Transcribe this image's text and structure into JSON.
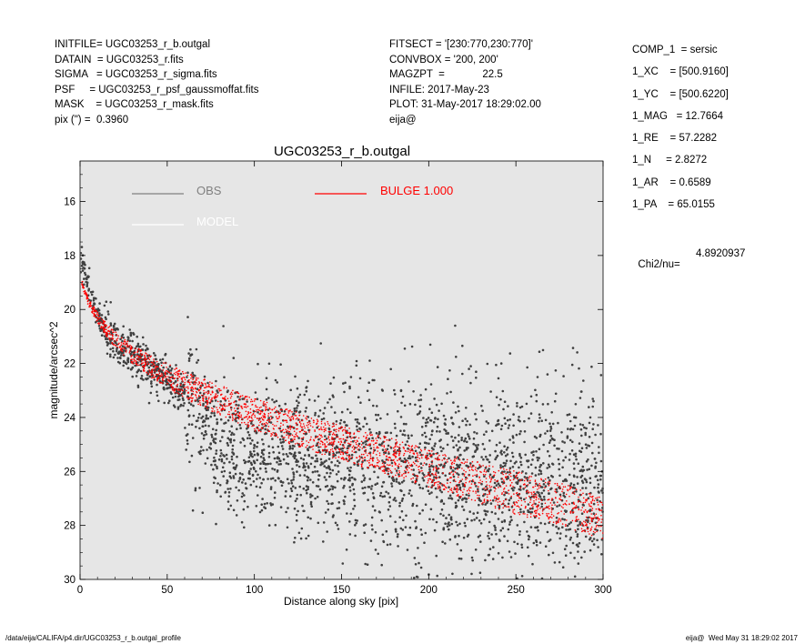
{
  "header_left": [
    "INITFILE= UGC03253_r_b.outgal",
    "DATAIN  = UGC03253_r.fits",
    "SIGMA   = UGC03253_r_sigma.fits",
    "PSF     = UGC03253_r_psf_gaussmoffat.fits",
    "MASK    = UGC03253_r_mask.fits",
    "pix (\") =  0.3960"
  ],
  "header_mid": [
    "FITSECT = '[230:770,230:770]'",
    "CONVBOX = '200, 200'",
    "MAGZPT  =             22.5",
    "INFILE: 2017-May-23",
    "PLOT: 31-May-2017 18:29:02.00",
    "eija@"
  ],
  "params": [
    "COMP_1  = sersic",
    "1_XC    = [500.9160]",
    "1_YC    = [500.6220]",
    "1_MAG   = 12.7664",
    "1_RE    = 57.2282",
    "1_N     = 2.8272",
    "1_AR    = 0.6589",
    "1_PA    = 65.0155"
  ],
  "chi2": {
    "label": "Chi2/nu=",
    "value": "4.8920937"
  },
  "footer": {
    "left": "/data/eija/CALIFA/p4.dir/UGC03253_r_b.outgal_profile",
    "right": "eija@  Wed May 31 18:29:02 2017"
  },
  "chart_data": {
    "type": "scatter",
    "title": "UGC03253_r_b.outgal",
    "xlabel": "Distance along sky [pix]",
    "ylabel": "magnitude/arcsec^2",
    "xlim": [
      0,
      300
    ],
    "ylim": [
      30,
      14.5
    ],
    "y_inverted": true,
    "x_ticks": [
      0,
      50,
      100,
      150,
      200,
      250,
      300
    ],
    "y_ticks": [
      16,
      18,
      20,
      22,
      24,
      26,
      28,
      30
    ],
    "grid": false,
    "background": "#e6e6e6",
    "legend": [
      {
        "name": "OBS",
        "color": "#808080"
      },
      {
        "name": "MODEL",
        "color": "#ffffff"
      },
      {
        "name": "BULGE  1.000",
        "color": "#ff0000"
      }
    ],
    "series": [
      {
        "name": "OBS",
        "color": "#404040",
        "x": [
          0,
          3,
          6,
          10,
          15,
          20,
          25,
          30,
          40,
          50,
          60,
          70,
          80,
          100,
          125,
          150,
          175,
          200,
          225,
          250,
          275,
          300
        ],
        "y": [
          17.8,
          18.8,
          19.5,
          20.2,
          20.8,
          21.2,
          21.4,
          21.7,
          22.1,
          22.6,
          23.2,
          24.2,
          24.8,
          25.1,
          25.4,
          25.6,
          25.8,
          26.0,
          26.1,
          26.2,
          26.3,
          26.4
        ]
      },
      {
        "name": "BULGE  1.000",
        "color": "#ff0000",
        "x": [
          1,
          5,
          10,
          15,
          20,
          30,
          40,
          50,
          60,
          80,
          100,
          125,
          150,
          175,
          200,
          225,
          250,
          275,
          300
        ],
        "y_upper": [
          18.9,
          19.6,
          20.1,
          20.5,
          20.8,
          21.3,
          21.7,
          22.0,
          22.3,
          22.8,
          23.3,
          23.8,
          24.3,
          24.7,
          25.2,
          25.6,
          26.0,
          26.4,
          27.0
        ],
        "y_lower": [
          19.1,
          19.9,
          20.5,
          21.0,
          21.4,
          22.0,
          22.5,
          22.9,
          23.3,
          23.9,
          24.5,
          25.1,
          25.6,
          26.1,
          26.6,
          27.1,
          27.6,
          28.0,
          28.5
        ]
      }
    ]
  }
}
